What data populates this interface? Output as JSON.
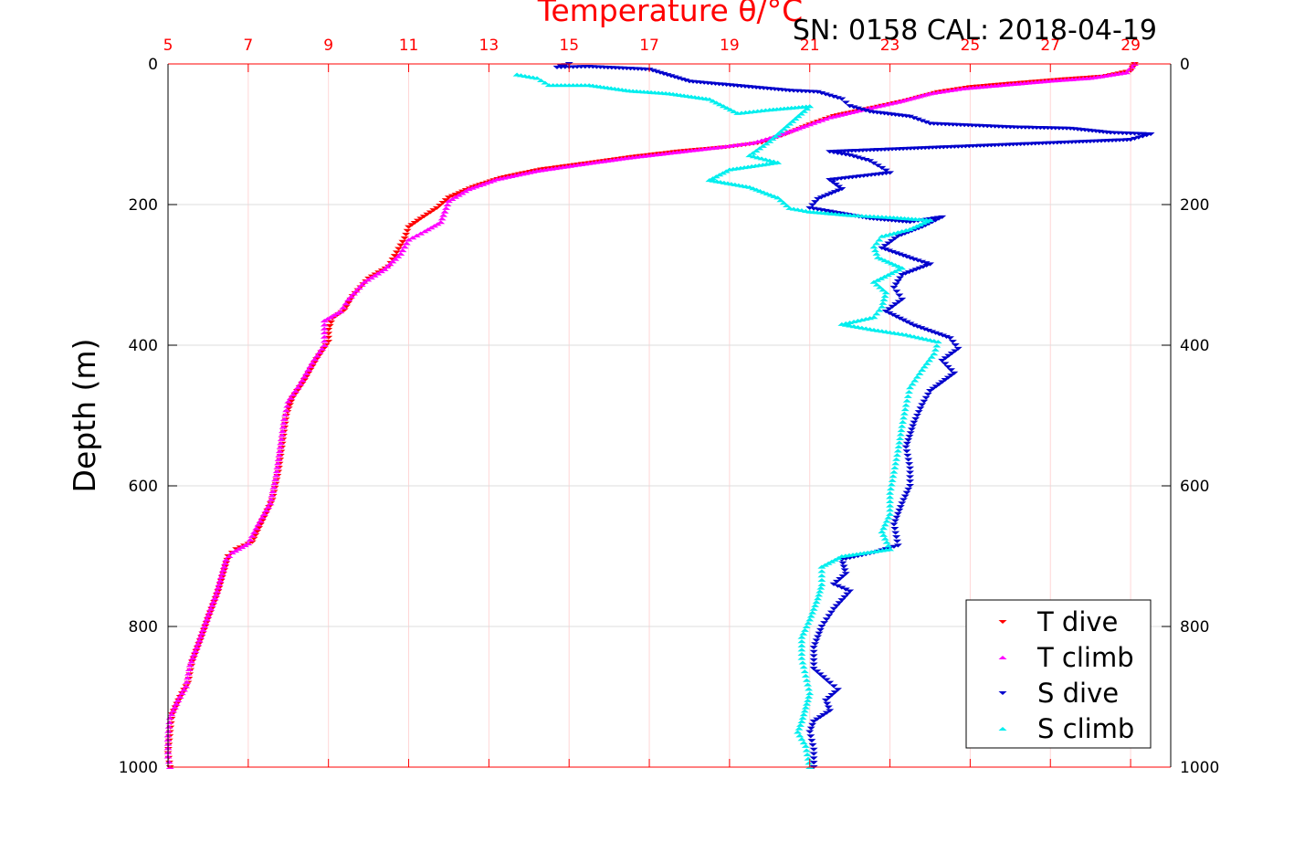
{
  "chart_data": {
    "type": "scatter",
    "title": "",
    "xlabel": "Temperature θ/°C",
    "ylabel": "Depth (m)",
    "annotation": "SN: 0158  CAL: 2018-04-19",
    "xlim": [
      5,
      30
    ],
    "ylim": [
      0,
      1000
    ],
    "y_reversed": true,
    "grid": true,
    "legend_position": "bottom-right",
    "x_ticks": [
      "5",
      "7",
      "9",
      "11",
      "13",
      "15",
      "17",
      "19",
      "21",
      "23",
      "25",
      "27",
      "29"
    ],
    "y_ticks": [
      "0",
      "200",
      "400",
      "600",
      "800",
      "1000"
    ],
    "series": [
      {
        "name": "T dive",
        "marker": "triangle-down",
        "color": "#ff0000",
        "points": [
          [
            29.1,
            0
          ],
          [
            29.0,
            10
          ],
          [
            28.3,
            18
          ],
          [
            27.3,
            22
          ],
          [
            26.0,
            28
          ],
          [
            25.0,
            33
          ],
          [
            24.2,
            40
          ],
          [
            23.4,
            52
          ],
          [
            22.6,
            62
          ],
          [
            21.6,
            74
          ],
          [
            21.0,
            86
          ],
          [
            20.4,
            100
          ],
          [
            19.8,
            112
          ],
          [
            19.0,
            118
          ],
          [
            17.8,
            124
          ],
          [
            16.6,
            132
          ],
          [
            15.6,
            140
          ],
          [
            14.3,
            150
          ],
          [
            13.3,
            162
          ],
          [
            12.6,
            175
          ],
          [
            12.0,
            190
          ],
          [
            11.7,
            205
          ],
          [
            11.3,
            220
          ],
          [
            11.0,
            232
          ],
          [
            10.9,
            248
          ],
          [
            10.7,
            268
          ],
          [
            10.5,
            288
          ],
          [
            10.0,
            305
          ],
          [
            9.6,
            330
          ],
          [
            9.4,
            350
          ],
          [
            9.1,
            362
          ],
          [
            9.0,
            378
          ],
          [
            9.0,
            395
          ],
          [
            8.7,
            420
          ],
          [
            8.4,
            450
          ],
          [
            8.1,
            475
          ],
          [
            7.95,
            500
          ],
          [
            7.85,
            540
          ],
          [
            7.75,
            580
          ],
          [
            7.6,
            620
          ],
          [
            7.35,
            650
          ],
          [
            7.1,
            680
          ],
          [
            6.7,
            690
          ],
          [
            6.5,
            700
          ],
          [
            6.4,
            720
          ],
          [
            6.25,
            750
          ],
          [
            6.05,
            780
          ],
          [
            5.8,
            820
          ],
          [
            5.6,
            850
          ],
          [
            5.5,
            880
          ],
          [
            5.3,
            900
          ],
          [
            5.1,
            925
          ],
          [
            5.05,
            950
          ],
          [
            5.0,
            980
          ],
          [
            5.05,
            1000
          ]
        ]
      },
      {
        "name": "T climb",
        "marker": "triangle-up",
        "color": "#ff00ff",
        "points": [
          [
            29.1,
            0
          ],
          [
            28.9,
            12
          ],
          [
            28.0,
            20
          ],
          [
            27.0,
            24
          ],
          [
            25.8,
            30
          ],
          [
            24.8,
            35
          ],
          [
            24.0,
            42
          ],
          [
            23.2,
            54
          ],
          [
            22.4,
            64
          ],
          [
            21.5,
            76
          ],
          [
            20.9,
            88
          ],
          [
            20.2,
            102
          ],
          [
            19.6,
            112
          ],
          [
            18.8,
            118
          ],
          [
            17.6,
            126
          ],
          [
            16.4,
            134
          ],
          [
            15.4,
            142
          ],
          [
            14.2,
            152
          ],
          [
            13.2,
            164
          ],
          [
            12.5,
            178
          ],
          [
            12.0,
            195
          ],
          [
            11.9,
            210
          ],
          [
            11.8,
            225
          ],
          [
            11.4,
            238
          ],
          [
            11.0,
            250
          ],
          [
            10.8,
            270
          ],
          [
            10.4,
            292
          ],
          [
            9.9,
            310
          ],
          [
            9.5,
            335
          ],
          [
            9.3,
            352
          ],
          [
            8.9,
            365
          ],
          [
            8.9,
            382
          ],
          [
            8.9,
            400
          ],
          [
            8.6,
            425
          ],
          [
            8.3,
            455
          ],
          [
            8.0,
            480
          ],
          [
            7.9,
            505
          ],
          [
            7.8,
            545
          ],
          [
            7.7,
            585
          ],
          [
            7.55,
            625
          ],
          [
            7.25,
            655
          ],
          [
            7.0,
            682
          ],
          [
            6.6,
            695
          ],
          [
            6.45,
            705
          ],
          [
            6.35,
            725
          ],
          [
            6.2,
            755
          ],
          [
            6.0,
            785
          ],
          [
            5.75,
            825
          ],
          [
            5.55,
            855
          ],
          [
            5.45,
            885
          ],
          [
            5.25,
            905
          ],
          [
            5.05,
            930
          ],
          [
            5.0,
            955
          ],
          [
            5.0,
            985
          ],
          [
            5.05,
            1000
          ]
        ]
      },
      {
        "name": "S dive",
        "marker": "triangle-down",
        "color": "#0000cc",
        "points": [
          [
            15.0,
            0
          ],
          [
            14.7,
            5
          ],
          [
            15.5,
            4
          ],
          [
            17.0,
            8
          ],
          [
            18.0,
            25
          ],
          [
            20.5,
            38
          ],
          [
            21.2,
            40
          ],
          [
            21.8,
            50
          ],
          [
            22.0,
            60
          ],
          [
            22.5,
            68
          ],
          [
            23.5,
            75
          ],
          [
            24.0,
            85
          ],
          [
            26.0,
            90
          ],
          [
            27.5,
            92
          ],
          [
            28.5,
            98
          ],
          [
            29.5,
            100
          ],
          [
            29.0,
            108
          ],
          [
            21.5,
            125
          ],
          [
            22.0,
            130
          ],
          [
            22.5,
            138
          ],
          [
            22.8,
            148
          ],
          [
            23.0,
            155
          ],
          [
            21.5,
            165
          ],
          [
            21.8,
            178
          ],
          [
            21.2,
            192
          ],
          [
            21.0,
            205
          ],
          [
            21.5,
            210
          ],
          [
            22.5,
            220
          ],
          [
            23.5,
            225
          ],
          [
            24.3,
            218
          ],
          [
            23.8,
            232
          ],
          [
            23.2,
            245
          ],
          [
            22.8,
            262
          ],
          [
            23.6,
            278
          ],
          [
            24.0,
            285
          ],
          [
            23.3,
            300
          ],
          [
            23.1,
            318
          ],
          [
            23.3,
            335
          ],
          [
            22.9,
            352
          ],
          [
            23.6,
            372
          ],
          [
            24.5,
            390
          ],
          [
            24.7,
            405
          ],
          [
            24.3,
            422
          ],
          [
            24.6,
            440
          ],
          [
            24.0,
            465
          ],
          [
            23.8,
            485
          ],
          [
            23.6,
            510
          ],
          [
            23.4,
            545
          ],
          [
            23.5,
            575
          ],
          [
            23.5,
            600
          ],
          [
            23.3,
            625
          ],
          [
            23.1,
            655
          ],
          [
            23.2,
            685
          ],
          [
            22.6,
            695
          ],
          [
            21.8,
            705
          ],
          [
            21.9,
            725
          ],
          [
            21.6,
            740
          ],
          [
            22.0,
            750
          ],
          [
            21.6,
            775
          ],
          [
            21.3,
            800
          ],
          [
            21.1,
            830
          ],
          [
            21.1,
            860
          ],
          [
            21.5,
            880
          ],
          [
            21.7,
            890
          ],
          [
            21.4,
            905
          ],
          [
            21.5,
            920
          ],
          [
            21.1,
            935
          ],
          [
            21.0,
            950
          ],
          [
            21.1,
            975
          ],
          [
            21.1,
            1000
          ]
        ]
      },
      {
        "name": "S climb",
        "marker": "triangle-up",
        "color": "#00eeee",
        "points": [
          [
            13.7,
            15
          ],
          [
            14.2,
            20
          ],
          [
            14.5,
            30
          ],
          [
            15.5,
            30
          ],
          [
            16.5,
            38
          ],
          [
            17.5,
            42
          ],
          [
            18.5,
            50
          ],
          [
            19.2,
            70
          ],
          [
            20.0,
            65
          ],
          [
            21.0,
            60
          ],
          [
            20.0,
            110
          ],
          [
            19.5,
            130
          ],
          [
            20.2,
            140
          ],
          [
            19.0,
            150
          ],
          [
            18.5,
            165
          ],
          [
            19.5,
            175
          ],
          [
            20.2,
            190
          ],
          [
            20.5,
            205
          ],
          [
            21.0,
            210
          ],
          [
            22.0,
            215
          ],
          [
            23.0,
            218
          ],
          [
            24.0,
            222
          ],
          [
            23.5,
            235
          ],
          [
            22.8,
            245
          ],
          [
            22.6,
            260
          ],
          [
            22.7,
            275
          ],
          [
            23.3,
            290
          ],
          [
            22.6,
            310
          ],
          [
            22.9,
            325
          ],
          [
            22.8,
            345
          ],
          [
            22.6,
            360
          ],
          [
            21.8,
            370
          ],
          [
            22.6,
            378
          ],
          [
            23.4,
            385
          ],
          [
            24.2,
            395
          ],
          [
            24.1,
            412
          ],
          [
            23.8,
            435
          ],
          [
            23.5,
            460
          ],
          [
            23.4,
            485
          ],
          [
            23.3,
            515
          ],
          [
            23.2,
            550
          ],
          [
            23.1,
            580
          ],
          [
            23.0,
            610
          ],
          [
            23.0,
            640
          ],
          [
            22.8,
            665
          ],
          [
            23.0,
            690
          ],
          [
            21.8,
            700
          ],
          [
            21.3,
            715
          ],
          [
            21.3,
            740
          ],
          [
            21.2,
            760
          ],
          [
            21.0,
            790
          ],
          [
            20.8,
            815
          ],
          [
            20.8,
            845
          ],
          [
            20.9,
            870
          ],
          [
            21.0,
            895
          ],
          [
            20.9,
            915
          ],
          [
            20.8,
            935
          ],
          [
            20.7,
            950
          ],
          [
            20.9,
            970
          ],
          [
            21.0,
            1000
          ]
        ]
      }
    ]
  }
}
